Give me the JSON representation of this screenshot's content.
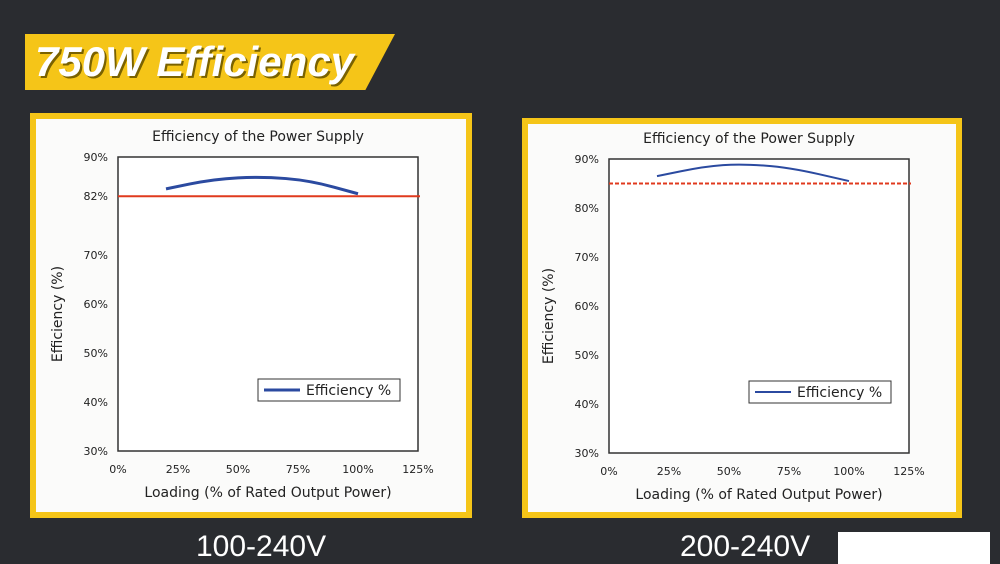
{
  "banner": {
    "title": "750W Efficiency"
  },
  "captions": {
    "left": "100-240V",
    "right": "200-240V"
  },
  "colors": {
    "accent": "#f5c518",
    "background": "#2a2c30",
    "efficiency_line": "#2b4aa0",
    "reference_line": "#e03a1e"
  },
  "chart_data": [
    {
      "type": "line",
      "title": "Efficiency of the Power Supply",
      "xlabel": "Loading (% of Rated Output Power)",
      "ylabel": "Efficiency (%)",
      "xlim": [
        0,
        125
      ],
      "ylim": [
        30,
        90
      ],
      "x_ticks": [
        "0%",
        "25%",
        "50%",
        "75%",
        "100%",
        "125%"
      ],
      "y_ticks": [
        {
          "value": 30,
          "label": "30%"
        },
        {
          "value": 40,
          "label": "40%"
        },
        {
          "value": 50,
          "label": "50%"
        },
        {
          "value": 60,
          "label": "60%"
        },
        {
          "value": 70,
          "label": "70%"
        },
        {
          "value": 82,
          "label": "82%"
        },
        {
          "value": 90,
          "label": "90%"
        }
      ],
      "series": [
        {
          "name": "Efficiency %",
          "x": [
            20,
            40,
            60,
            80,
            100
          ],
          "values": [
            83.5,
            85.5,
            86,
            85.2,
            82.5
          ]
        }
      ],
      "reference_line": {
        "value": 82,
        "style": "solid"
      },
      "legend": {
        "label": "Efficiency %",
        "position": "bottom-right"
      }
    },
    {
      "type": "line",
      "title": "Efficiency of the Power Supply",
      "xlabel": "Loading (% of Rated Output Power)",
      "ylabel": "Efficiency (%)",
      "xlim": [
        0,
        125
      ],
      "ylim": [
        30,
        90
      ],
      "x_ticks": [
        "0%",
        "25%",
        "50%",
        "75%",
        "100%",
        "125%"
      ],
      "y_ticks": [
        {
          "value": 30,
          "label": "30%"
        },
        {
          "value": 40,
          "label": "40%"
        },
        {
          "value": 50,
          "label": "50%"
        },
        {
          "value": 60,
          "label": "60%"
        },
        {
          "value": 70,
          "label": "70%"
        },
        {
          "value": 80,
          "label": "80%"
        },
        {
          "value": 90,
          "label": "90%"
        }
      ],
      "series": [
        {
          "name": "Efficiency %",
          "x": [
            20,
            40,
            55,
            75,
            100
          ],
          "values": [
            86.5,
            88.5,
            89,
            88.3,
            85.5
          ]
        }
      ],
      "reference_line": {
        "value": 85,
        "style": "dashed"
      },
      "legend": {
        "label": "Efficiency %",
        "position": "bottom-right"
      }
    }
  ]
}
